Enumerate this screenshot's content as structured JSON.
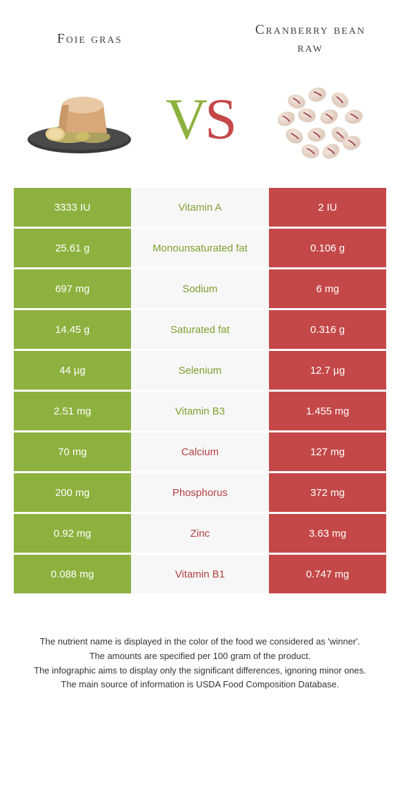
{
  "titles": {
    "left": "Foie gras",
    "right": "Cranberry bean raw"
  },
  "vs": {
    "v": "V",
    "s": "S"
  },
  "colors": {
    "green": "#8db13f",
    "red": "#c44848",
    "mid_bg": "#f7f7f7"
  },
  "rows": [
    {
      "left": "3333 IU",
      "nutrient": "Vitamin A",
      "right": "2 IU",
      "winner": "left"
    },
    {
      "left": "25.61 g",
      "nutrient": "Monounsaturated fat",
      "right": "0.106 g",
      "winner": "left"
    },
    {
      "left": "697 mg",
      "nutrient": "Sodium",
      "right": "6 mg",
      "winner": "left"
    },
    {
      "left": "14.45 g",
      "nutrient": "Saturated fat",
      "right": "0.316 g",
      "winner": "left"
    },
    {
      "left": "44 µg",
      "nutrient": "Selenium",
      "right": "12.7 µg",
      "winner": "left"
    },
    {
      "left": "2.51 mg",
      "nutrient": "Vitamin B3",
      "right": "1.455 mg",
      "winner": "left"
    },
    {
      "left": "70 mg",
      "nutrient": "Calcium",
      "right": "127 mg",
      "winner": "right"
    },
    {
      "left": "200 mg",
      "nutrient": "Phosphorus",
      "right": "372 mg",
      "winner": "right"
    },
    {
      "left": "0.92 mg",
      "nutrient": "Zinc",
      "right": "3.63 mg",
      "winner": "right"
    },
    {
      "left": "0.088 mg",
      "nutrient": "Vitamin B1",
      "right": "0.747 mg",
      "winner": "right"
    }
  ],
  "caption": {
    "l1": "The nutrient name is displayed in the color of the food we considered as 'winner'.",
    "l2": "The amounts are specified per 100 gram of the product.",
    "l3": "The infographic aims to display only the significant differences, ignoring minor ones.",
    "l4": "The main source of information is USDA Food Composition Database."
  }
}
